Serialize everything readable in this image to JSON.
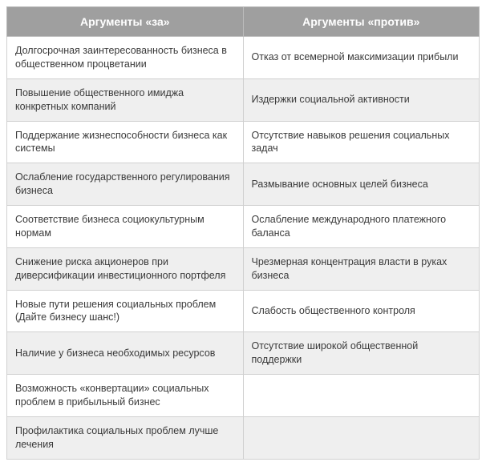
{
  "table": {
    "type": "table",
    "columns": [
      "Аргументы «за»",
      "Аргументы «против»"
    ],
    "column_widths": [
      "50%",
      "50%"
    ],
    "header_bg": "#9f9f9f",
    "header_text_color": "#ffffff",
    "header_fontsize": 14,
    "header_fontweight": "bold",
    "header_align": "center",
    "cell_fontsize": 12.5,
    "cell_text_color": "#3a3a3a",
    "cell_padding": "9px 10px",
    "row_bg_odd": "#ffffff",
    "row_bg_even": "#efefef",
    "border_color": "#d0d0d0",
    "header_border_color": "#bcbcbc",
    "line_height": 1.35,
    "rows": [
      {
        "for": "Долгосрочная заинтересованность бизнеса в общественном процветании",
        "against": "Отказ от всемерной максимизации прибыли"
      },
      {
        "for": "Повышение общественного имиджа конкретных компаний",
        "against": "Издержки социальной активности"
      },
      {
        "for": "Поддержание жизнеспособности бизнеса как системы",
        "against": "Отсутствие навыков решения социальных задач"
      },
      {
        "for": "Ослабление государственного регулирования бизнеса",
        "against": "Размывание основных целей бизнеса"
      },
      {
        "for": "Соответствие бизнеса социокультурным нормам",
        "against": "Ослабление международного платежного баланса"
      },
      {
        "for": "Снижение риска акционеров при диверсификации инвестиционного портфеля",
        "against": "Чрезмерная концентрация власти в руках бизнеса"
      },
      {
        "for": "Новые пути решения социальных проблем (Дайте бизнесу шанс!)",
        "against": "Слабость общественного контроля"
      },
      {
        "for": "Наличие у бизнеса необходимых ресурсов",
        "against": "Отсутствие широкой общественной поддержки"
      },
      {
        "for": "Возможность «конвертации» социальных проблем в прибыльный бизнес",
        "against": ""
      },
      {
        "for": "Профилактика социальных проблем лучше лечения",
        "against": ""
      }
    ]
  }
}
